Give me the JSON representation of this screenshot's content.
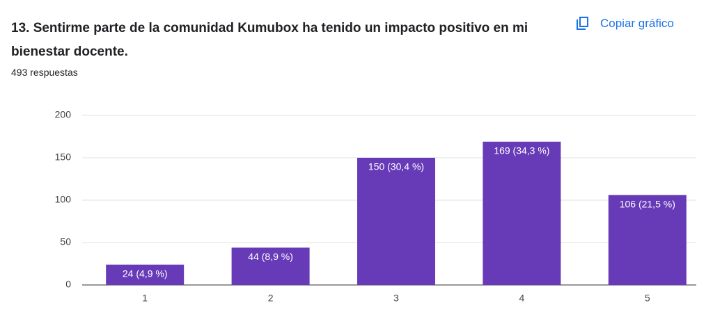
{
  "chart_data": {
    "type": "bar",
    "title": "13. Sentirme parte de la comunidad Kumubox ha tenido un impacto positivo en mi bienestar docente.",
    "subtitle": "493 respuestas",
    "button": "Copiar gráfico",
    "categories": [
      "1",
      "2",
      "3",
      "4",
      "5"
    ],
    "values": [
      24,
      44,
      150,
      169,
      106
    ],
    "value_labels": [
      "24 (4,9 %)",
      "44 (8,9 %)",
      "150 (30,4 %)",
      "169 (34,3 %)",
      "106 (21,5 %)"
    ],
    "color": "#673ab7",
    "ylim": [
      0,
      200
    ],
    "yticks": [
      0,
      50,
      100,
      150,
      200
    ],
    "grid": true
  }
}
